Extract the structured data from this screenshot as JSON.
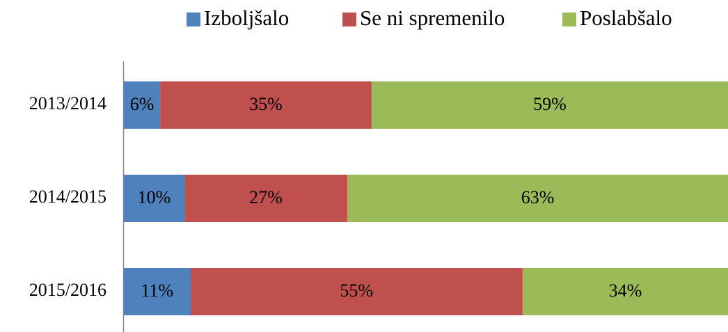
{
  "chart_data": {
    "type": "stacked-bar-horizontal",
    "categories": [
      "2013/2014",
      "2014/2015",
      "2015/2016"
    ],
    "series": [
      {
        "name": "Izboljšalo",
        "color": "#4f81bd",
        "values": [
          6,
          10,
          11
        ],
        "value_labels": [
          "6%",
          "10%",
          "11%"
        ]
      },
      {
        "name": "Se ni spremenilo",
        "color": "#c0504d",
        "values": [
          35,
          27,
          55
        ],
        "value_labels": [
          "35%",
          "27%",
          "55%"
        ]
      },
      {
        "name": "Poslabšalo",
        "color": "#9bbb59",
        "values": [
          59,
          63,
          34
        ],
        "value_labels": [
          "59%",
          "63%",
          "34%"
        ]
      }
    ],
    "legend": "top"
  }
}
